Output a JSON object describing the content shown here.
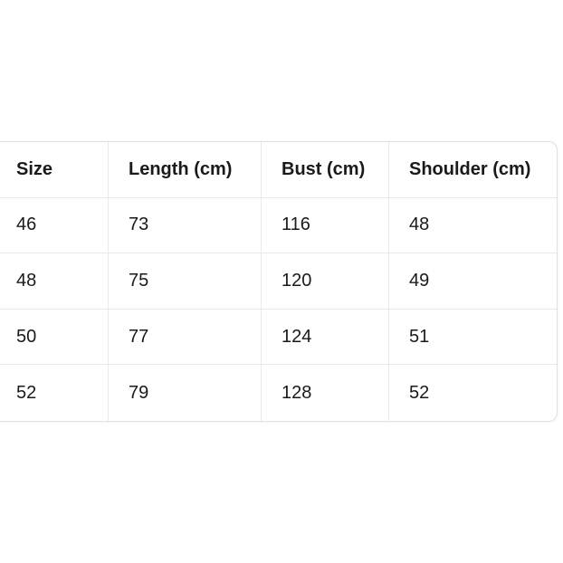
{
  "page": {
    "background_color": "#ffffff"
  },
  "table": {
    "name": "garment-size-chart",
    "columns": [
      "Size",
      "Length (cm)",
      "Bust (cm)",
      "Shoulder (cm)"
    ],
    "rows": [
      [
        "46",
        "73",
        "116",
        "48"
      ],
      [
        "48",
        "75",
        "120",
        "49"
      ],
      [
        "50",
        "77",
        "124",
        "51"
      ],
      [
        "52",
        "79",
        "128",
        "52"
      ]
    ],
    "colors": {
      "text": "#1a1a1a",
      "grid_border": "#e9e9e9",
      "outer_border": "#e0e0e0",
      "background": "#ffffff"
    }
  }
}
